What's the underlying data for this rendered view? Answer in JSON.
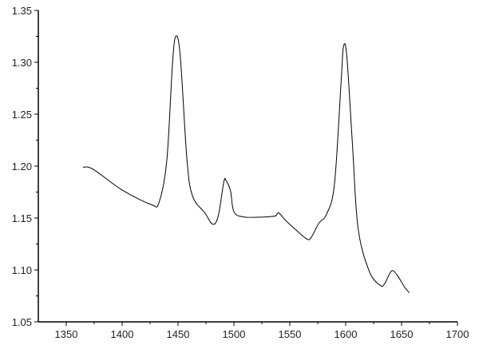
{
  "chart_data": {
    "type": "line",
    "title": "",
    "xlabel": "",
    "ylabel": "",
    "xlim": [
      1325,
      1700
    ],
    "ylim": [
      1.05,
      1.35
    ],
    "xticks": [
      1350,
      1400,
      1450,
      1500,
      1550,
      1600,
      1650,
      1700
    ],
    "xtick_labels": [
      "1350",
      "1400",
      "1450",
      "1500",
      "1550",
      "1600",
      "1650",
      "1700"
    ],
    "yticks": [
      1.05,
      1.1,
      1.15,
      1.2,
      1.25,
      1.3,
      1.35
    ],
    "ytick_labels": [
      "1.05",
      "1.10",
      "1.15",
      "1.20",
      "1.25",
      "1.30",
      "1.35"
    ],
    "grid": false,
    "line_color": "#000000",
    "series": [
      {
        "x": [
          1365,
          1374,
          1400,
          1426,
          1433,
          1440,
          1445,
          1448,
          1452,
          1458,
          1463,
          1474,
          1481,
          1486,
          1491,
          1493,
          1497,
          1500,
          1509,
          1527,
          1537,
          1540,
          1546,
          1555,
          1565,
          1569,
          1576,
          1583,
          1590,
          1596,
          1598,
          1601,
          1606,
          1611,
          1621,
          1631,
          1635,
          1641,
          1646,
          1653,
          1657
        ],
        "y": [
          1.199,
          1.197,
          1.177,
          1.163,
          1.165,
          1.206,
          1.298,
          1.325,
          1.306,
          1.206,
          1.171,
          1.155,
          1.144,
          1.152,
          1.185,
          1.186,
          1.176,
          1.156,
          1.151,
          1.151,
          1.152,
          1.155,
          1.148,
          1.139,
          1.13,
          1.131,
          1.145,
          1.154,
          1.183,
          1.283,
          1.315,
          1.306,
          1.222,
          1.141,
          1.099,
          1.085,
          1.087,
          1.099,
          1.095,
          1.083,
          1.078
        ]
      }
    ]
  }
}
